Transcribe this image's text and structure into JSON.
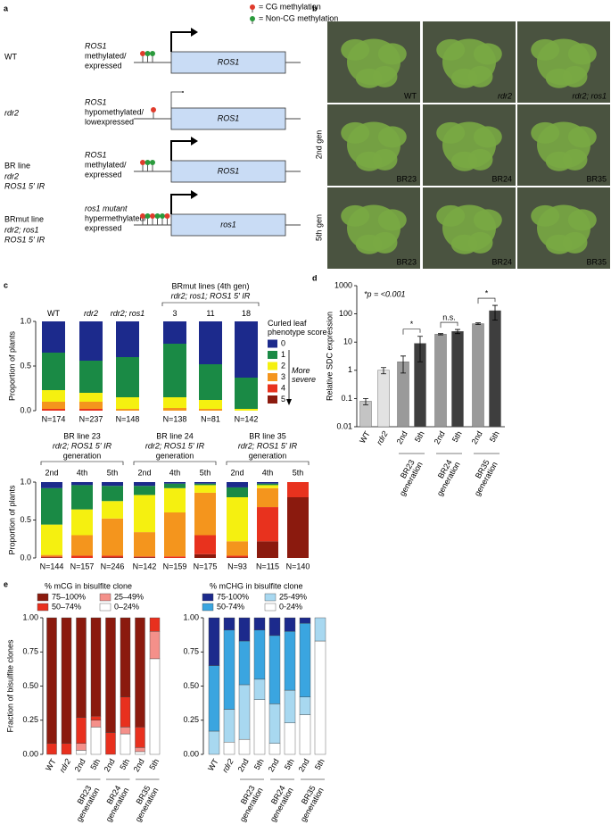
{
  "panels": [
    "a",
    "b",
    "c",
    "d",
    "e"
  ],
  "diagram": {
    "legend": [
      {
        "label": "= CG methylation",
        "color": "#e03b2c"
      },
      {
        "label": "= Non-CG methylation",
        "color": "#2a9a3c"
      }
    ],
    "rows": [
      {
        "label": "WT",
        "sublabel": [],
        "description": [
          "ROS1",
          "methylated/",
          "expressed"
        ],
        "gene": "ROS1"
      },
      {
        "label": "rdr2",
        "sublabel": [],
        "description": [
          "ROS1",
          "hypomethylated/",
          "lowexpressed"
        ],
        "gene": "ROS1"
      },
      {
        "label": "BR line",
        "sublabel": [
          "rdr2",
          "ROS1 5′ IR"
        ],
        "description": [
          "ROS1",
          "methylated/",
          "expressed"
        ],
        "gene": "ROS1"
      },
      {
        "label": "BRmut line",
        "sublabel": [
          "rdr2; ros1",
          "ROS1 5′ IR"
        ],
        "description": [
          "ros1 mutant",
          "hypermethylated/",
          "expressed"
        ],
        "gene": "ros1"
      }
    ]
  },
  "photos": {
    "row_labels": [
      "2nd gen",
      "5th gen"
    ],
    "labels": [
      [
        "WT",
        "rdr2",
        "rdr2; ros1"
      ],
      [
        "BR23",
        "BR24",
        "BR35"
      ],
      [
        "BR23",
        "BR24",
        "BR35"
      ]
    ]
  },
  "chart_data": [
    {
      "type": "stacked_bar",
      "header": "BRmut lines (4th gen)",
      "subheader": "rdr2; ros1; ROS1 5′ IR",
      "categories": [
        "WT",
        "rdr2",
        "rdr2; ros1",
        "3",
        "11",
        "18"
      ],
      "ylabel": "Proportion of plants",
      "ylim": [
        0,
        1
      ],
      "yticks": [
        {
          "value": 0,
          "label": "0.0"
        },
        {
          "value": 0.5,
          "label": "0.5"
        },
        {
          "value": 1,
          "label": "1.0"
        }
      ],
      "legend_title": "Curled leaf phenotype score",
      "legend_note": "More severe",
      "series": [
        {
          "name": "5",
          "color": "#8b1a0e",
          "values": [
            0,
            0,
            0,
            0,
            0,
            0
          ]
        },
        {
          "name": "4",
          "color": "#e8321e",
          "values": [
            0.02,
            0.02,
            0,
            0,
            0,
            0
          ]
        },
        {
          "name": "3",
          "color": "#f4951d",
          "values": [
            0.08,
            0.08,
            0.02,
            0.03,
            0.02,
            0
          ]
        },
        {
          "name": "2",
          "color": "#f5f010",
          "values": [
            0.13,
            0.1,
            0.13,
            0.12,
            0.1,
            0.02
          ]
        },
        {
          "name": "1",
          "color": "#1a8a45",
          "values": [
            0.42,
            0.36,
            0.45,
            0.6,
            0.4,
            0.35
          ]
        },
        {
          "name": "0",
          "color": "#1c2a8c",
          "values": [
            0.35,
            0.44,
            0.4,
            0.25,
            0.48,
            0.63
          ]
        }
      ],
      "n_labels": [
        "N=174",
        "N=237",
        "N=148",
        "N=138",
        "N=81",
        "N=142"
      ]
    },
    {
      "type": "stacked_bar",
      "groups": [
        {
          "title": "BR line 23",
          "subtitle": "rdr2; ROS1 5′ IR",
          "note": "generation"
        },
        {
          "title": "BR line 24",
          "subtitle": "rdr2; ROS1 5′ IR",
          "note": "generation"
        },
        {
          "title": "BR line 35",
          "subtitle": "rdr2; ROS1 5′ IR",
          "note": "generation"
        }
      ],
      "categories": [
        "2nd",
        "4th",
        "5th",
        "2nd",
        "4th",
        "5th",
        "2nd",
        "4th",
        "5th"
      ],
      "ylabel": "Proportion of plants",
      "ylim": [
        0,
        1
      ],
      "yticks": [
        {
          "value": 0,
          "label": "0.0"
        },
        {
          "value": 0.5,
          "label": "0.5"
        },
        {
          "value": 1,
          "label": "1.0"
        }
      ],
      "series": [
        {
          "color": "#8b1a0e",
          "values": [
            0.01,
            0,
            0.01,
            0.01,
            0,
            0.05,
            0.01,
            0.22,
            0.8
          ]
        },
        {
          "color": "#e8321e",
          "values": [
            0.01,
            0.03,
            0.02,
            0.01,
            0.02,
            0.25,
            0.02,
            0.45,
            0.2
          ]
        },
        {
          "color": "#f4951d",
          "values": [
            0.02,
            0.27,
            0.49,
            0.32,
            0.58,
            0.56,
            0.19,
            0.25,
            0
          ]
        },
        {
          "color": "#f5f010",
          "values": [
            0.4,
            0.34,
            0.23,
            0.49,
            0.32,
            0.1,
            0.58,
            0.04,
            0
          ]
        },
        {
          "color": "#1a8a45",
          "values": [
            0.48,
            0.32,
            0.2,
            0.12,
            0.06,
            0.02,
            0.13,
            0.02,
            0
          ]
        },
        {
          "color": "#1c2a8c",
          "values": [
            0.08,
            0.04,
            0.05,
            0.05,
            0.02,
            0.02,
            0.07,
            0.02,
            0
          ]
        }
      ],
      "n_labels": [
        "N=144",
        "N=157",
        "N=246",
        "N=142",
        "N=159",
        "N=175",
        "N=93",
        "N=115",
        "N=140"
      ]
    },
    {
      "type": "bar",
      "log_scale": true,
      "ylabel": "Relative SDC expression",
      "annotation": "*p = <0.001",
      "categories": [
        "WT",
        "rdr2",
        "2nd",
        "5th",
        "2nd",
        "5th",
        "2nd",
        "5th"
      ],
      "values": [
        0.08,
        1,
        2,
        9,
        19,
        24,
        45,
        130
      ],
      "errors": [
        0.02,
        0.25,
        1.2,
        7,
        1,
        4,
        3,
        70
      ],
      "colors": [
        "#c4c4c4",
        "#e2e2e2",
        "#9a9a9a",
        "#3e3e3e",
        "#9a9a9a",
        "#3e3e3e",
        "#9a9a9a",
        "#3e3e3e"
      ],
      "ylim": [
        0.01,
        1000
      ],
      "yticks": [
        0.01,
        0.1,
        1,
        10,
        100,
        1000
      ],
      "groups": [
        "BR23 generation",
        "BR24 generation",
        "BR35 generation"
      ],
      "comparisons": [
        "*",
        "n.s.",
        "*"
      ]
    },
    {
      "type": "stacked_bar",
      "title": "% mCG in bisulfite clone",
      "ylabel": "Fraction of bisulfite clones",
      "categories": [
        "WT",
        "rdr2",
        "2nd",
        "5th",
        "2nd",
        "5th",
        "2nd",
        "5th"
      ],
      "groups": [
        "BR23 generation",
        "BR24 generation",
        "BR35 generation"
      ],
      "ylim": [
        0,
        1
      ],
      "yticks": [
        {
          "value": 0,
          "label": "0.00"
        },
        {
          "value": 0.25,
          "label": "0.25"
        },
        {
          "value": 0.5,
          "label": "0.50"
        },
        {
          "value": 0.75,
          "label": "0.75"
        },
        {
          "value": 1,
          "label": "1.00"
        }
      ],
      "series": [
        {
          "name": "0–24%",
          "color": "#ffffff",
          "values": [
            0,
            0,
            0.03,
            0.2,
            0,
            0.15,
            0.02,
            0.7
          ]
        },
        {
          "name": "25–49%",
          "color": "#f4908a",
          "values": [
            0,
            0,
            0.05,
            0.05,
            0,
            0.05,
            0.03,
            0.2
          ]
        },
        {
          "name": "50–74%",
          "color": "#e8301e",
          "values": [
            0.08,
            0.08,
            0.19,
            0.03,
            0.16,
            0.22,
            0.15,
            0.1
          ]
        },
        {
          "name": "75–100%",
          "color": "#8b1a0e",
          "values": [
            0.92,
            0.92,
            0.73,
            0.72,
            0.84,
            0.58,
            0.8,
            0
          ]
        }
      ]
    },
    {
      "type": "stacked_bar",
      "title": "% mCHG in bisulfite clone",
      "categories": [
        "WT",
        "rdr2",
        "2nd",
        "5th",
        "2nd",
        "5th",
        "2nd",
        "5th"
      ],
      "groups": [
        "BR23 generation",
        "BR24 generation",
        "BR35 generation"
      ],
      "ylim": [
        0,
        1
      ],
      "yticks": [
        {
          "value": 0,
          "label": "0.00"
        },
        {
          "value": 0.25,
          "label": "0.25"
        },
        {
          "value": 0.5,
          "label": "0.50"
        },
        {
          "value": 0.75,
          "label": "0.75"
        },
        {
          "value": 1,
          "label": "1.00"
        }
      ],
      "series": [
        {
          "name": "0-24%",
          "color": "#ffffff",
          "values": [
            0,
            0.09,
            0.11,
            0.4,
            0.08,
            0.23,
            0.29,
            0.83
          ]
        },
        {
          "name": "25-49%",
          "color": "#a8d8f0",
          "values": [
            0.17,
            0.24,
            0.4,
            0.15,
            0.29,
            0.24,
            0.13,
            0.17
          ]
        },
        {
          "name": "50-74%",
          "color": "#3aa5e0",
          "values": [
            0.48,
            0.58,
            0.32,
            0.36,
            0.5,
            0.43,
            0.54,
            0
          ]
        },
        {
          "name": "75-100%",
          "color": "#1c2a8c",
          "values": [
            0.35,
            0.09,
            0.17,
            0.09,
            0.13,
            0.1,
            0.04,
            0
          ]
        }
      ]
    }
  ]
}
